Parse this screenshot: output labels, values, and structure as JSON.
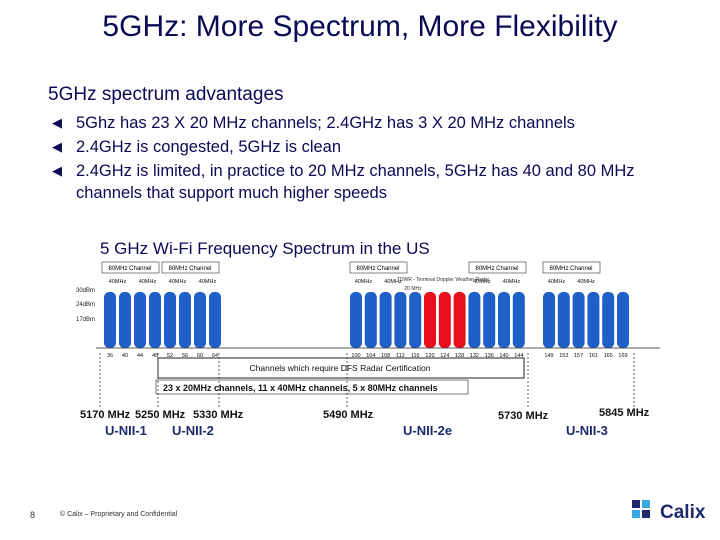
{
  "slide": {
    "title": "5GHz:  More Spectrum, More Flexibility",
    "subtitle": "5GHz spectrum advantages",
    "bullets": [
      "5Ghz has 23 X 20 MHz channels; 2.4GHz has 3 X 20 MHz channels",
      "2.4GHz is congested, 5GHz is clean",
      "2.4GHz is limited, in practice to 20 MHz channels, 5GHz has 40 and 80 MHz channels that support much higher speeds"
    ],
    "bullet_icon": "triangle-left-icon",
    "page_number": "8",
    "footer": "© Calix – Proprietary and Confidential",
    "logo_text": "Calix"
  },
  "diagram": {
    "title": "5 GHz Wi-Fi Frequency Spectrum in the US",
    "power_levels": [
      "30dBm",
      "24dBm",
      "17dBm"
    ],
    "eighty_mhz_labels": [
      "80MHz Channel",
      "80MHz Channel",
      "80MHz Channel",
      "80MHz Channel",
      "80MHz Channel"
    ],
    "forty_mhz_label": "40MHz",
    "tdwr_note": "TDWR - Terminal Doppler Weather Radar",
    "tdwr_gap_label": "20 MHz",
    "channels": [
      "36",
      "40",
      "44",
      "48",
      "52",
      "56",
      "60",
      "64",
      "100",
      "104",
      "108",
      "112",
      "116",
      "120",
      "124",
      "128",
      "132",
      "136",
      "140",
      "144",
      "149",
      "153",
      "157",
      "161",
      "165",
      "169"
    ],
    "blocked_channels": [
      "120",
      "124",
      "128"
    ],
    "dfs_label": "Channels which require DFS Radar Certification",
    "summary_label": "23 x 20MHz channels, 11 x 40MHz channels, 5 x 80MHz channels",
    "frequencies": [
      "5170 MHz",
      "5250 MHz",
      "5330 MHz",
      "5490 MHz",
      "5730 MHz",
      "5845 MHz"
    ],
    "bands": [
      "U-NII-1",
      "U-NII-2",
      "U-NII-2e",
      "U-NII-3"
    ],
    "colors": {
      "channel": "#1f5fc8",
      "blocked": "#e8101a",
      "title": "#0a0a55"
    }
  }
}
